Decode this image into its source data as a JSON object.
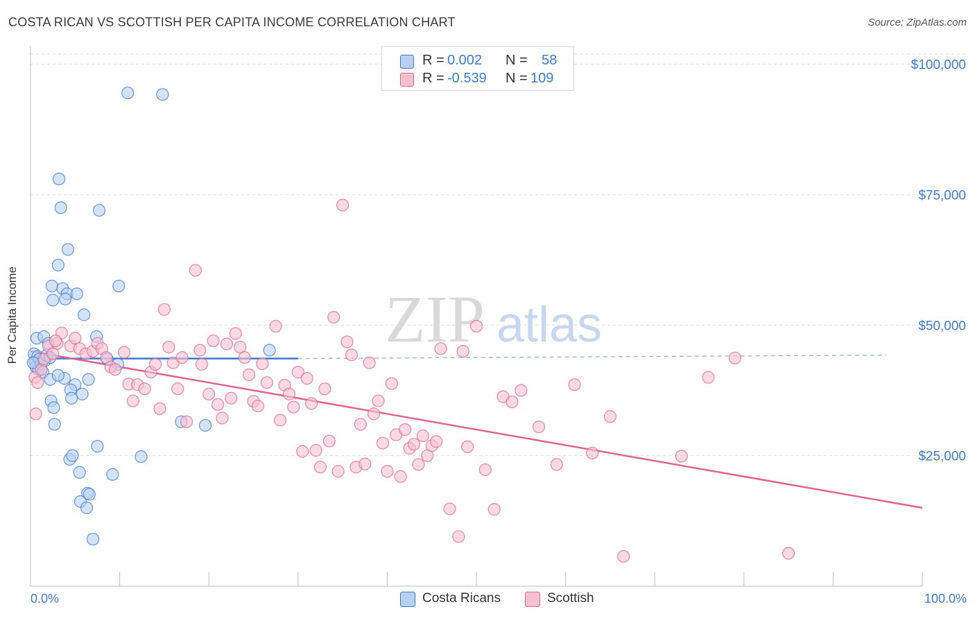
{
  "title": "COSTA RICAN VS SCOTTISH PER CAPITA INCOME CORRELATION CHART",
  "source": "Source: ZipAtlas.com",
  "watermark": {
    "zip": "ZIP",
    "atlas": "atlas"
  },
  "colors": {
    "blue": "#3a78d0",
    "blue_fill": "#b8d0f2",
    "pink": "#e0648f",
    "pink_fill": "#f5c0d0",
    "tick_text": "#3f7cc9",
    "grid": "#dcdcdc"
  },
  "legend": {
    "rows": [
      {
        "r_label": "R =",
        "r_value": "0.002",
        "n_label": "N =",
        "n_value": "58",
        "series": "Costa Ricans"
      },
      {
        "r_label": "R =",
        "r_value": "-0.539",
        "n_label": "N =",
        "n_value": "109",
        "series": "Scottish"
      }
    ]
  },
  "bottom_legend": [
    "Costa Ricans",
    "Scottish"
  ],
  "chart_data": {
    "type": "scatter",
    "title": "COSTA RICAN VS SCOTTISH PER CAPITA INCOME CORRELATION CHART",
    "xlabel": "",
    "ylabel": "Per Capita Income",
    "xlim": [
      0,
      100
    ],
    "ylim": [
      0,
      103000
    ],
    "x_tick_labels": [
      "0.0%",
      "100.0%"
    ],
    "y_ticks": [
      25000,
      50000,
      75000,
      100000
    ],
    "y_tick_labels": [
      "$25,000",
      "$50,000",
      "$75,000",
      "$100,000"
    ],
    "grid": true,
    "legend_position": "top-center",
    "series": [
      {
        "name": "Costa Ricans",
        "color": "#3a78d0",
        "trend": {
          "x": [
            0,
            30
          ],
          "y": [
            43600,
            43600
          ],
          "dashed_extension_to": 96
        },
        "points": [
          [
            0.4,
            44500
          ],
          [
            0.5,
            43000
          ],
          [
            0.6,
            42000
          ],
          [
            0.8,
            44000
          ],
          [
            0.9,
            41500
          ],
          [
            1.0,
            43500
          ],
          [
            1.2,
            42500
          ],
          [
            1.4,
            41000
          ],
          [
            1.6,
            43200
          ],
          [
            0.7,
            47500
          ],
          [
            1.5,
            47800
          ],
          [
            2.0,
            46500
          ],
          [
            1.8,
            44200
          ],
          [
            2.2,
            43800
          ],
          [
            0.3,
            42800
          ],
          [
            3.2,
            78000
          ],
          [
            3.4,
            72500
          ],
          [
            4.2,
            64500
          ],
          [
            3.1,
            61500
          ],
          [
            2.4,
            57500
          ],
          [
            3.6,
            57000
          ],
          [
            4.1,
            56000
          ],
          [
            5.2,
            56000
          ],
          [
            3.9,
            55000
          ],
          [
            2.5,
            54800
          ],
          [
            6.0,
            52000
          ],
          [
            7.4,
            47800
          ],
          [
            9.9,
            57500
          ],
          [
            7.7,
            72000
          ],
          [
            10.9,
            94500
          ],
          [
            14.8,
            94200
          ],
          [
            2.2,
            39600
          ],
          [
            3.8,
            39800
          ],
          [
            6.5,
            39600
          ],
          [
            3.1,
            40400
          ],
          [
            5.0,
            38600
          ],
          [
            4.5,
            37600
          ],
          [
            5.8,
            36800
          ],
          [
            2.3,
            35500
          ],
          [
            2.6,
            34200
          ],
          [
            4.6,
            36000
          ],
          [
            2.7,
            31000
          ],
          [
            7.5,
            26800
          ],
          [
            4.4,
            24300
          ],
          [
            4.7,
            25000
          ],
          [
            12.4,
            24800
          ],
          [
            5.5,
            21800
          ],
          [
            9.2,
            21400
          ],
          [
            6.4,
            17800
          ],
          [
            6.6,
            17600
          ],
          [
            5.6,
            16200
          ],
          [
            6.3,
            15000
          ],
          [
            7.0,
            9000
          ],
          [
            16.9,
            31500
          ],
          [
            19.6,
            30800
          ],
          [
            26.8,
            45200
          ],
          [
            8.6,
            43500
          ],
          [
            9.8,
            42500
          ]
        ]
      },
      {
        "name": "Scottish",
        "color": "#e0648f",
        "trend": {
          "x": [
            0,
            100
          ],
          "y": [
            45000,
            15000
          ]
        },
        "points": [
          [
            0.5,
            40000
          ],
          [
            0.8,
            39000
          ],
          [
            0.6,
            33000
          ],
          [
            1.2,
            41500
          ],
          [
            1.5,
            43500
          ],
          [
            2.0,
            46000
          ],
          [
            2.5,
            44500
          ],
          [
            3.5,
            48500
          ],
          [
            3.0,
            46500
          ],
          [
            4.5,
            46000
          ],
          [
            5.0,
            47500
          ],
          [
            5.5,
            45500
          ],
          [
            6.2,
            44500
          ],
          [
            7.0,
            45000
          ],
          [
            7.5,
            46500
          ],
          [
            8.0,
            45500
          ],
          [
            8.5,
            43800
          ],
          [
            9.0,
            42000
          ],
          [
            9.5,
            41500
          ],
          [
            10.5,
            44800
          ],
          [
            11.0,
            38700
          ],
          [
            11.5,
            35500
          ],
          [
            12.0,
            38600
          ],
          [
            12.8,
            37800
          ],
          [
            13.5,
            41000
          ],
          [
            14.0,
            42500
          ],
          [
            14.5,
            34000
          ],
          [
            15.0,
            53000
          ],
          [
            15.5,
            45800
          ],
          [
            16.0,
            42800
          ],
          [
            16.5,
            37800
          ],
          [
            17.0,
            43800
          ],
          [
            17.5,
            31500
          ],
          [
            18.5,
            60500
          ],
          [
            19.0,
            45200
          ],
          [
            19.2,
            42500
          ],
          [
            20.0,
            36800
          ],
          [
            20.5,
            47000
          ],
          [
            21.0,
            34800
          ],
          [
            21.5,
            32200
          ],
          [
            22.0,
            46400
          ],
          [
            22.5,
            36000
          ],
          [
            23.0,
            48400
          ],
          [
            23.5,
            45800
          ],
          [
            24.0,
            43800
          ],
          [
            24.5,
            40500
          ],
          [
            25.0,
            35400
          ],
          [
            25.5,
            34500
          ],
          [
            26.0,
            42600
          ],
          [
            26.5,
            39000
          ],
          [
            27.5,
            49800
          ],
          [
            28.0,
            31800
          ],
          [
            28.5,
            38500
          ],
          [
            29.0,
            36800
          ],
          [
            29.5,
            34300
          ],
          [
            30.0,
            41000
          ],
          [
            30.5,
            25800
          ],
          [
            31.0,
            39800
          ],
          [
            31.5,
            35000
          ],
          [
            32.0,
            26000
          ],
          [
            32.5,
            22800
          ],
          [
            33.0,
            37800
          ],
          [
            33.5,
            27800
          ],
          [
            34.0,
            51500
          ],
          [
            34.5,
            22000
          ],
          [
            35.0,
            73000
          ],
          [
            35.5,
            46800
          ],
          [
            36.0,
            44300
          ],
          [
            36.5,
            22800
          ],
          [
            37.0,
            31000
          ],
          [
            37.5,
            23400
          ],
          [
            38.0,
            42800
          ],
          [
            38.5,
            33000
          ],
          [
            39.0,
            35500
          ],
          [
            39.5,
            27400
          ],
          [
            40.0,
            22000
          ],
          [
            40.5,
            38800
          ],
          [
            41.0,
            29000
          ],
          [
            41.5,
            21000
          ],
          [
            42.0,
            30000
          ],
          [
            42.5,
            26400
          ],
          [
            43.0,
            27200
          ],
          [
            43.5,
            23300
          ],
          [
            44.0,
            28800
          ],
          [
            44.5,
            25000
          ],
          [
            45.0,
            26900
          ],
          [
            45.5,
            27700
          ],
          [
            46.0,
            45500
          ],
          [
            47.0,
            14800
          ],
          [
            48.0,
            9500
          ],
          [
            48.5,
            45000
          ],
          [
            49.0,
            26700
          ],
          [
            50.0,
            49800
          ],
          [
            51.0,
            22300
          ],
          [
            52.0,
            14700
          ],
          [
            53.0,
            36300
          ],
          [
            54.0,
            35300
          ],
          [
            55.0,
            37500
          ],
          [
            57.0,
            30500
          ],
          [
            59.0,
            23300
          ],
          [
            61.0,
            38600
          ],
          [
            63.0,
            25500
          ],
          [
            65.0,
            32500
          ],
          [
            66.5,
            5700
          ],
          [
            73.0,
            24900
          ],
          [
            76.0,
            40000
          ],
          [
            79.0,
            43700
          ],
          [
            85.0,
            6300
          ],
          [
            2.8,
            47000
          ]
        ]
      }
    ]
  }
}
